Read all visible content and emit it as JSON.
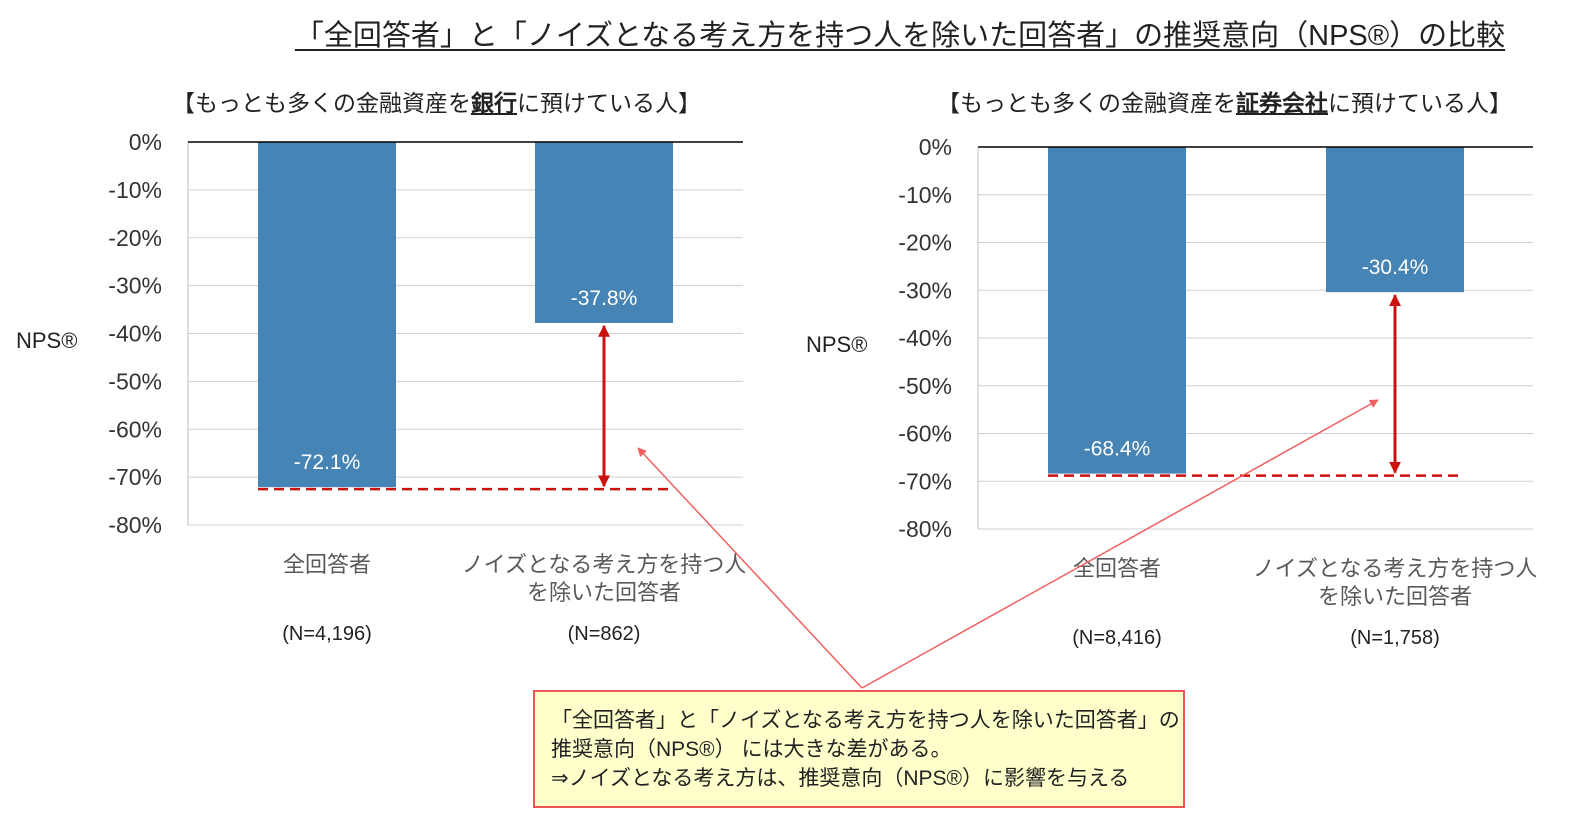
{
  "title": "「全回答者」と「ノイズとなる考え方を持つ人を除いた回答者」の推奨意向（NPS®）の比較",
  "callout": {
    "lines": [
      "「全回答者」と「ノイズとなる考え方を持つ人を除いた回答者」の",
      "推奨意向（NPS®） には大きな差がある。",
      "⇒ノイズとなる考え方は、推奨意向（NPS®）に影響を与える"
    ],
    "fill_color": "#FFFFCC",
    "border_color": "#EE5555"
  },
  "chart_data": [
    {
      "type": "bar",
      "subtitle_pre": "【もっとも多くの金融資産を",
      "subtitle_bold": "銀行",
      "subtitle_post": "に預けている人】",
      "ylabel": "NPS®",
      "ylim": [
        -80,
        0
      ],
      "yticks": [
        "0%",
        "-10%",
        "-20%",
        "-30%",
        "-40%",
        "-50%",
        "-60%",
        "-70%",
        "-80%"
      ],
      "grid": true,
      "categories": [
        [
          "全回答者"
        ],
        [
          "ノイズとなる考え方を持つ人",
          "を除いた回答者"
        ]
      ],
      "sample_sizes": [
        "(N=4,196)",
        "(N=862)"
      ],
      "values": [
        -72.1,
        -37.8
      ],
      "data_labels": [
        "-72.1%",
        "-37.8%"
      ],
      "bar_color": "#4584B4",
      "reference_line_color": "#CC1111"
    },
    {
      "type": "bar",
      "subtitle_pre": "【もっとも多くの金融資産を",
      "subtitle_bold": "証券会社",
      "subtitle_post": "に預けている人】",
      "ylabel": "NPS®",
      "ylim": [
        -80,
        0
      ],
      "yticks": [
        "0%",
        "-10%",
        "-20%",
        "-30%",
        "-40%",
        "-50%",
        "-60%",
        "-70%",
        "-80%"
      ],
      "grid": true,
      "categories": [
        [
          "全回答者"
        ],
        [
          "ノイズとなる考え方を持つ人",
          "を除いた回答者"
        ]
      ],
      "sample_sizes": [
        "(N=8,416)",
        "(N=1,758)"
      ],
      "values": [
        -68.4,
        -30.4
      ],
      "data_labels": [
        "-68.4%",
        "-30.4%"
      ],
      "bar_color": "#4584B4",
      "reference_line_color": "#CC1111"
    }
  ]
}
